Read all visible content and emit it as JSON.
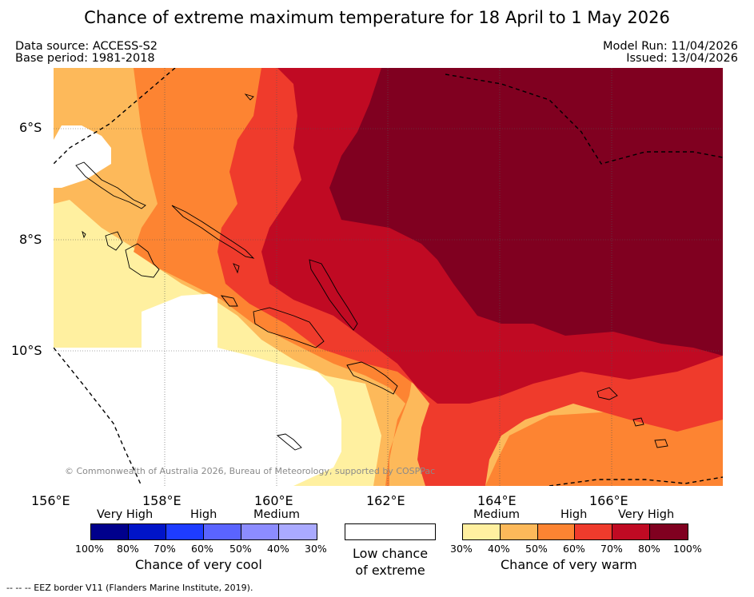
{
  "title": "Chance of extreme maximum temperature for 18 April to 1 May 2026",
  "header": {
    "data_source": "Data source: ACCESS-S2",
    "base_period": "Base period: 1981-2018",
    "model_run": "Model Run: 11/04/2026",
    "issued": "Issued: 13/04/2026"
  },
  "map": {
    "lat_labels": [
      "6°S",
      "8°S",
      "10°S"
    ],
    "lon_labels": [
      "156°E",
      "158°E",
      "160°E",
      "162°E",
      "164°E",
      "166°E"
    ],
    "copyright": "© Commonwealth of Australia 2026, Bureau of Meteorology, supported by COSPPac",
    "colors": {
      "white": "#ffffff",
      "p30": "#fff0a0",
      "p40": "#fdb95a",
      "p50": "#fd8432",
      "p60": "#ef3b2c",
      "p70": "#c00a23",
      "p80": "#800020"
    }
  },
  "legend": {
    "cool": {
      "categories": [
        "Very High",
        "High",
        "Medium"
      ],
      "ticks": [
        "100%",
        "80%",
        "70%",
        "60%",
        "50%",
        "40%",
        "30%"
      ],
      "colors": [
        "#00008c",
        "#0014c8",
        "#1e3cff",
        "#5a64ff",
        "#8c8cff",
        "#aaaaff"
      ],
      "caption": "Chance of very cool"
    },
    "neutral": {
      "caption_line1": "Low chance",
      "caption_line2": "of extreme"
    },
    "warm": {
      "categories": [
        "Medium",
        "High",
        "Very High"
      ],
      "ticks": [
        "30%",
        "40%",
        "50%",
        "60%",
        "70%",
        "80%",
        "100%"
      ],
      "colors": [
        "#fff0a0",
        "#fdb95a",
        "#fd8432",
        "#ef3b2c",
        "#c00a23",
        "#800020"
      ],
      "caption": "Chance of very warm"
    }
  },
  "footer": "--  --  -- EEZ border V11 (Flanders Marine Institute, 2019)."
}
